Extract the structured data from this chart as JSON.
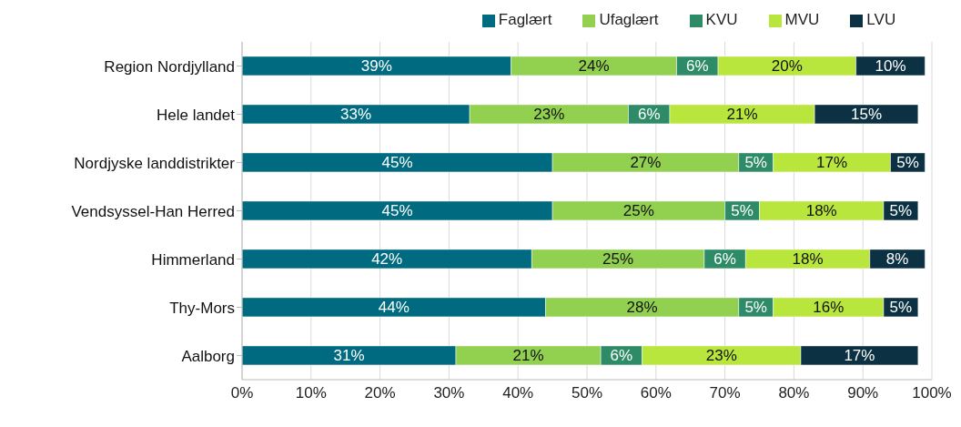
{
  "chart_data": {
    "type": "bar",
    "orientation": "horizontal",
    "stacked": true,
    "categories": [
      "Region Nordjylland",
      "Hele landet",
      "Nordjyske landdistrikter",
      "Vendsyssel-Han Herred",
      "Himmerland",
      "Thy-Mors",
      "Aalborg"
    ],
    "series": [
      {
        "name": "Faglært",
        "color": "#006b80",
        "values": [
          39,
          33,
          45,
          45,
          42,
          44,
          31
        ],
        "value_labels": [
          "39%",
          "33%",
          "45%",
          "45%",
          "42%",
          "44%",
          "31%"
        ]
      },
      {
        "name": "Ufaglært",
        "color": "#92d050",
        "values": [
          24,
          23,
          27,
          25,
          25,
          28,
          21
        ],
        "value_labels": [
          "24%",
          "23%",
          "27%",
          "25%",
          "25%",
          "28%",
          "21%"
        ]
      },
      {
        "name": "KVU",
        "color": "#2e8b68",
        "values": [
          6,
          6,
          5,
          5,
          6,
          5,
          6
        ],
        "value_labels": [
          "6%",
          "6%",
          "5%",
          "5%",
          "6%",
          "5%",
          "6%"
        ]
      },
      {
        "name": "MVU",
        "color": "#b8e63c",
        "values": [
          20,
          21,
          17,
          18,
          18,
          16,
          23
        ],
        "value_labels": [
          "20%",
          "21%",
          "17%",
          "18%",
          "18%",
          "16%",
          "23%"
        ]
      },
      {
        "name": "LVU",
        "color": "#0b3142",
        "values": [
          10,
          15,
          5,
          5,
          8,
          5,
          17
        ],
        "value_labels": [
          "10%",
          "15%",
          "5%",
          "5%",
          "8%",
          "5%",
          "17%"
        ]
      }
    ],
    "xlim": [
      0,
      100
    ],
    "xticks": [
      {
        "value": 0,
        "label": "0%"
      },
      {
        "value": 10,
        "label": "10%"
      },
      {
        "value": 20,
        "label": "20%"
      },
      {
        "value": 30,
        "label": "30%"
      },
      {
        "value": 40,
        "label": "40%"
      },
      {
        "value": 50,
        "label": "50%"
      },
      {
        "value": 60,
        "label": "60%"
      },
      {
        "value": 70,
        "label": "70%"
      },
      {
        "value": 80,
        "label": "80%"
      },
      {
        "value": 90,
        "label": "90%"
      },
      {
        "value": 100,
        "label": "100%"
      }
    ],
    "grid": "x",
    "legend": "top"
  }
}
